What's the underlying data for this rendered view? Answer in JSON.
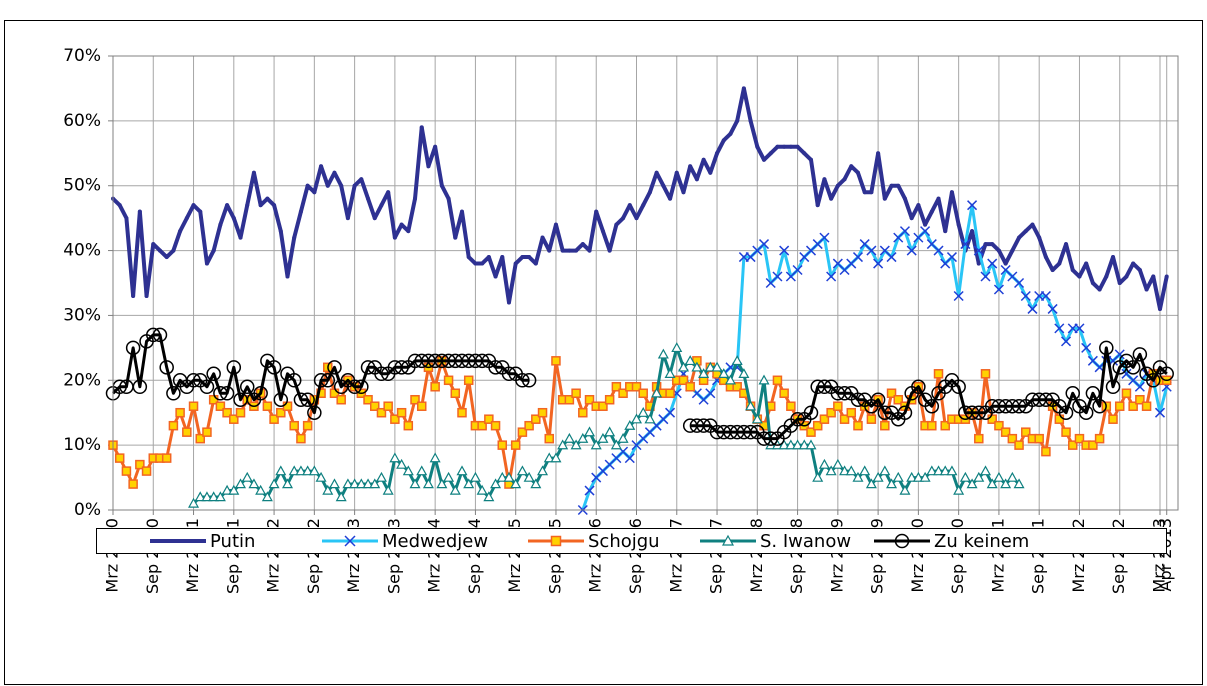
{
  "chart_data": {
    "type": "line",
    "categories": [
      "Mrz 2000",
      null,
      null,
      null,
      null,
      null,
      "Sep 2000",
      null,
      null,
      null,
      null,
      null,
      "Mrz 2001",
      null,
      null,
      null,
      null,
      null,
      "Sep 2001",
      null,
      null,
      null,
      null,
      null,
      "Mrz 2002",
      null,
      null,
      null,
      null,
      null,
      "Sep 2002",
      null,
      null,
      null,
      null,
      null,
      "Mrz 2003",
      null,
      null,
      null,
      null,
      null,
      "Sep 2003",
      null,
      null,
      null,
      null,
      null,
      "Mrz 2004",
      null,
      null,
      null,
      null,
      null,
      "Sep 2004",
      null,
      null,
      null,
      null,
      null,
      "Mrz 2005",
      null,
      null,
      null,
      null,
      null,
      "Sep 2005",
      null,
      null,
      null,
      null,
      null,
      "Mrz 2006",
      null,
      null,
      null,
      null,
      null,
      "Sep 2006",
      null,
      null,
      null,
      null,
      null,
      "Mrz 2007",
      null,
      null,
      null,
      null,
      null,
      "Sep 2007",
      null,
      null,
      null,
      null,
      null,
      "Mrz 2008",
      null,
      null,
      null,
      null,
      null,
      "Sep 2008",
      null,
      null,
      null,
      null,
      null,
      "Mrz 2009",
      null,
      null,
      null,
      null,
      null,
      "Sep 2009",
      null,
      null,
      null,
      null,
      null,
      "Mrz 2010",
      null,
      null,
      null,
      null,
      null,
      "Sep 2010",
      null,
      null,
      null,
      null,
      null,
      "Mrz 2011",
      null,
      null,
      null,
      null,
      null,
      "Sep 2011",
      null,
      null,
      null,
      null,
      null,
      "Mrz 2012",
      null,
      null,
      null,
      null,
      null,
      "Sep 2012",
      null,
      null,
      null,
      null,
      null,
      "Mrz 2013",
      "Apr 2013"
    ],
    "ylim": [
      0,
      70
    ],
    "yticks": [
      {
        "value": 0,
        "label": "0%"
      },
      {
        "value": 10,
        "label": "10%"
      },
      {
        "value": 20,
        "label": "20%"
      },
      {
        "value": 30,
        "label": "30%"
      },
      {
        "value": 40,
        "label": "40%"
      },
      {
        "value": 50,
        "label": "50%"
      },
      {
        "value": 60,
        "label": "60%"
      },
      {
        "value": 70,
        "label": "70%"
      }
    ],
    "grid": true,
    "legend": "bottom",
    "series": [
      {
        "name": "Putin",
        "color": "#2e3192",
        "marker": "none",
        "values": [
          48,
          47,
          45,
          33,
          46,
          33,
          41,
          40,
          39,
          40,
          43,
          45,
          47,
          46,
          38,
          40,
          44,
          47,
          45,
          42,
          47,
          52,
          47,
          48,
          47,
          43,
          36,
          42,
          46,
          50,
          49,
          53,
          50,
          52,
          50,
          45,
          50,
          51,
          48,
          45,
          47,
          49,
          42,
          44,
          43,
          48,
          59,
          53,
          56,
          50,
          48,
          42,
          46,
          39,
          38,
          38,
          39,
          36,
          39,
          32,
          38,
          39,
          39,
          38,
          42,
          40,
          44,
          40,
          40,
          40,
          41,
          40,
          46,
          43,
          40,
          44,
          45,
          47,
          45,
          47,
          49,
          52,
          50,
          48,
          52,
          49,
          53,
          51,
          54,
          52,
          55,
          57,
          58,
          60,
          65,
          60,
          56,
          54,
          55,
          56,
          56,
          56,
          56,
          55,
          54,
          47,
          51,
          48,
          50,
          51,
          53,
          52,
          49,
          49,
          55,
          48,
          50,
          50,
          48,
          45,
          47,
          44,
          46,
          48,
          43,
          49,
          44,
          40,
          43,
          38,
          41,
          41,
          40,
          38,
          40,
          42,
          43,
          44,
          42,
          39,
          37,
          38,
          41,
          37,
          36,
          38,
          35,
          34,
          36,
          39,
          35,
          36,
          38,
          37,
          34,
          36,
          31,
          36
        ]
      },
      {
        "name": "Medwedjew",
        "color": "#29c5f6",
        "marker": "cross",
        "values": [
          null,
          null,
          null,
          null,
          null,
          null,
          null,
          null,
          null,
          null,
          null,
          null,
          null,
          null,
          null,
          null,
          null,
          null,
          null,
          null,
          null,
          null,
          null,
          null,
          null,
          null,
          null,
          null,
          null,
          null,
          null,
          null,
          null,
          null,
          null,
          null,
          null,
          null,
          null,
          null,
          null,
          null,
          null,
          null,
          null,
          null,
          null,
          null,
          null,
          null,
          null,
          null,
          null,
          null,
          null,
          null,
          null,
          null,
          null,
          null,
          null,
          null,
          null,
          null,
          null,
          null,
          null,
          null,
          null,
          null,
          0,
          3,
          5,
          6,
          7,
          8,
          9,
          8,
          10,
          11,
          12,
          13,
          14,
          15,
          18,
          21,
          19,
          18,
          17,
          18,
          20,
          21,
          22,
          22,
          39,
          39,
          40,
          41,
          35,
          36,
          40,
          36,
          37,
          39,
          40,
          41,
          42,
          36,
          38,
          37,
          38,
          39,
          41,
          40,
          38,
          40,
          39,
          42,
          43,
          40,
          42,
          43,
          41,
          40,
          38,
          39,
          33,
          41,
          47,
          40,
          36,
          38,
          34,
          37,
          36,
          35,
          33,
          31,
          33,
          33,
          31,
          28,
          26,
          28,
          28,
          25,
          23,
          22,
          23,
          23,
          24,
          21,
          20,
          19,
          21,
          20,
          15,
          19
        ]
      },
      {
        "name": "Schojgu",
        "color": "#f26522",
        "marker": "square",
        "values": [
          10,
          8,
          6,
          4,
          7,
          6,
          8,
          8,
          8,
          13,
          15,
          12,
          16,
          11,
          12,
          17,
          16,
          15,
          14,
          15,
          17,
          16,
          18,
          16,
          14,
          15,
          16,
          13,
          11,
          13,
          17,
          18,
          22,
          18,
          17,
          20,
          19,
          18,
          17,
          16,
          15,
          16,
          14,
          15,
          13,
          17,
          16,
          22,
          19,
          23,
          20,
          18,
          15,
          20,
          13,
          13,
          14,
          13,
          10,
          4,
          10,
          12,
          13,
          14,
          15,
          11,
          23,
          17,
          17,
          18,
          15,
          17,
          16,
          16,
          17,
          19,
          18,
          19,
          19,
          18,
          16,
          19,
          18,
          18,
          20,
          20,
          19,
          23,
          20,
          22,
          21,
          20,
          19,
          19,
          18,
          16,
          14,
          13,
          16,
          20,
          18,
          16,
          14,
          13,
          12,
          13,
          14,
          15,
          16,
          14,
          15,
          13,
          16,
          14,
          17,
          13,
          18,
          17,
          16,
          17,
          19,
          13,
          13,
          21,
          13,
          14,
          14,
          14,
          15,
          11,
          21,
          14,
          13,
          12,
          11,
          10,
          12,
          11,
          11,
          9,
          16,
          14,
          12,
          10,
          11,
          10,
          10,
          11,
          16,
          14,
          16,
          18,
          16,
          17,
          16,
          21,
          20,
          20
        ]
      },
      {
        "name": "S. Iwanow",
        "color": "#0f8080",
        "marker": "triangle",
        "values": [
          null,
          null,
          null,
          null,
          null,
          null,
          null,
          null,
          null,
          null,
          null,
          null,
          1,
          2,
          2,
          2,
          2,
          3,
          3,
          4,
          5,
          4,
          3,
          2,
          4,
          6,
          4,
          6,
          6,
          6,
          6,
          5,
          3,
          4,
          2,
          4,
          4,
          4,
          4,
          4,
          5,
          3,
          8,
          7,
          6,
          4,
          6,
          4,
          8,
          4,
          5,
          3,
          6,
          4,
          5,
          3,
          2,
          4,
          5,
          5,
          4,
          6,
          5,
          4,
          6,
          8,
          8,
          10,
          11,
          10,
          11,
          12,
          10,
          11,
          12,
          10,
          11,
          13,
          14,
          15,
          14,
          18,
          24,
          21,
          25,
          22,
          23,
          22,
          21,
          22,
          22,
          21,
          20,
          23,
          21,
          16,
          14,
          20,
          10,
          10,
          10,
          10,
          10,
          10,
          10,
          5,
          7,
          6,
          7,
          6,
          6,
          5,
          6,
          4,
          5,
          6,
          4,
          5,
          3,
          5,
          5,
          5,
          6,
          6,
          6,
          6,
          3,
          5,
          4,
          5,
          6,
          4,
          5,
          4,
          5,
          4,
          null,
          null,
          null,
          null,
          null,
          null,
          null,
          null,
          null,
          null,
          null,
          null,
          null,
          null,
          null,
          null,
          null,
          null,
          null,
          null,
          null,
          null
        ]
      },
      {
        "name": "Zu keinem",
        "color": "#000000",
        "marker": "circle",
        "values": [
          18,
          19,
          19,
          25,
          19,
          26,
          27,
          27,
          22,
          18,
          20,
          19,
          20,
          20,
          19,
          21,
          18,
          18,
          22,
          17,
          19,
          17,
          18,
          23,
          22,
          17,
          21,
          20,
          17,
          17,
          15,
          20,
          20,
          22,
          19,
          20,
          19,
          19,
          22,
          22,
          21,
          21,
          22,
          22,
          22,
          23,
          23,
          23,
          23,
          23,
          23,
          23,
          23,
          23,
          23,
          23,
          23,
          22,
          22,
          21,
          21,
          20,
          20,
          null,
          null,
          null,
          null,
          null,
          null,
          null,
          null,
          null,
          null,
          null,
          null,
          null,
          null,
          null,
          null,
          null,
          null,
          null,
          null,
          null,
          null,
          null,
          13,
          13,
          13,
          13,
          12,
          12,
          12,
          12,
          12,
          12,
          12,
          11,
          11,
          11,
          12,
          13,
          14,
          14,
          15,
          19,
          19,
          19,
          18,
          18,
          18,
          17,
          17,
          16,
          17,
          15,
          15,
          14,
          15,
          18,
          19,
          17,
          16,
          18,
          19,
          20,
          19,
          15,
          15,
          15,
          15,
          16,
          16,
          16,
          16,
          16,
          16,
          17,
          17,
          17,
          17,
          16,
          15,
          18,
          16,
          15,
          18,
          16,
          25,
          19,
          22,
          23,
          22,
          24,
          21,
          20,
          22,
          21
        ]
      }
    ]
  }
}
